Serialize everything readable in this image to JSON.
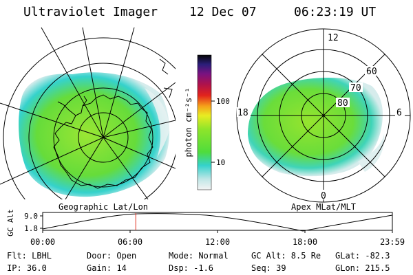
{
  "header": {
    "instrument": "Ultraviolet Imager",
    "date": "12 Dec 07",
    "time": "06:23:19 UT"
  },
  "left_panel": {
    "caption": "Geographic Lat/Lon"
  },
  "right_panel": {
    "caption": "Apex MLat/MLT",
    "mlt_labels": {
      "top": "12",
      "right": "6",
      "bottom": "0",
      "left": "18"
    },
    "mlat_labels": [
      "60",
      "70",
      "80"
    ]
  },
  "colorbar": {
    "label": "photon cm⁻²s⁻¹",
    "ticks": [
      "100",
      "10"
    ],
    "scale": "log"
  },
  "orbit_plot": {
    "ylabel": "GC Alt",
    "yticks": [
      "9.0",
      "1.8"
    ],
    "xticks": [
      "00:00",
      "06:00",
      "12:00",
      "18:00",
      "23:59"
    ],
    "current_time_hours": 6.39,
    "marker_color": "#e03020"
  },
  "status": {
    "filter": "Flt: LBHL",
    "door": "Door: Open",
    "mode": "Mode: Normal",
    "gc_alt": "GC Alt: 8.5 Re",
    "glat": "GLat: -82.3",
    "ip": "IP: 36.0",
    "gain": "Gain: 14",
    "dsp": "Dsp:   -1.6",
    "seq": "Seq: 39",
    "glon": "GLon: 215.5"
  },
  "colors": {
    "aurora_main": "#6fe23a",
    "aurora_edge": "#35d2cc",
    "aurora_low": "#c7e6e6"
  }
}
